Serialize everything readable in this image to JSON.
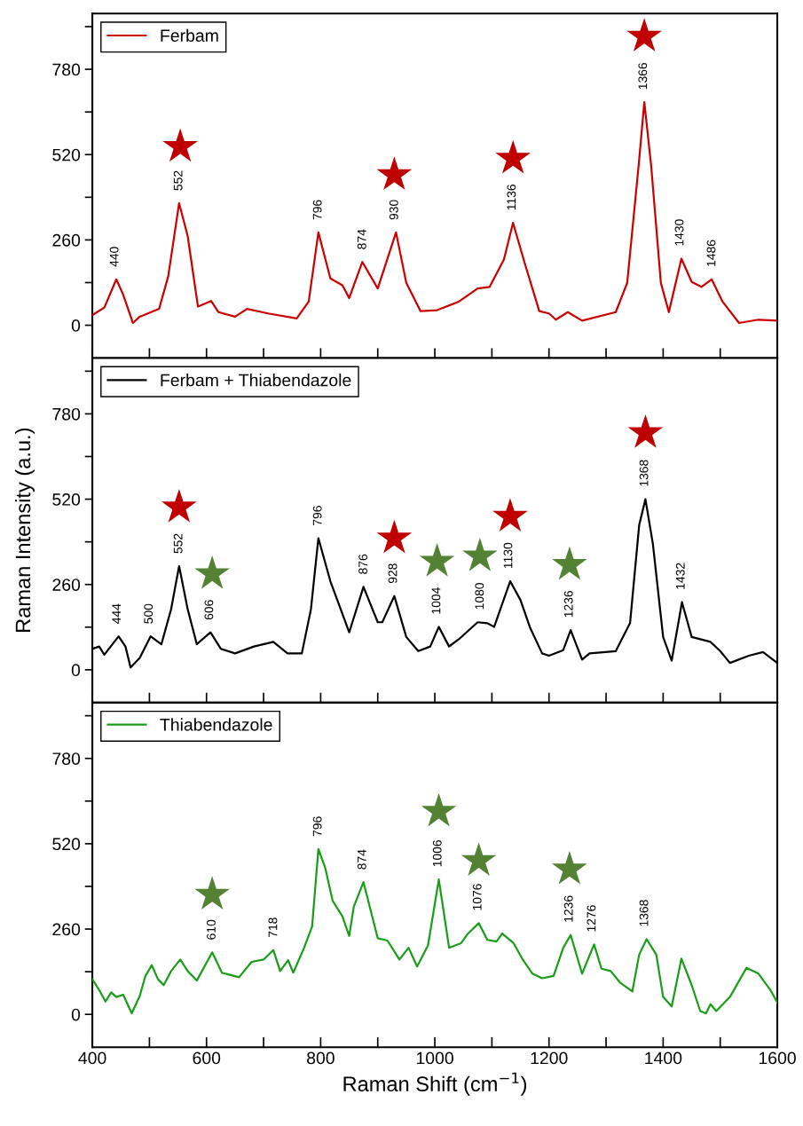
{
  "chart_data": [
    {
      "type": "line",
      "xlim": [
        400,
        1600
      ],
      "ylim": [
        -100,
        950
      ],
      "xticks": [
        400,
        {
          "value": 500,
          "label": null
        },
        600,
        {
          "value": 700,
          "label": null
        },
        800,
        {
          "value": 900,
          "label": null
        },
        1000,
        {
          "value": 1100,
          "label": null
        },
        1200,
        {
          "value": 1300,
          "label": null
        },
        1400,
        {
          "value": 1500,
          "label": null
        },
        1600
      ],
      "yticks": [
        0,
        {
          "value": 130,
          "label": null
        },
        260,
        {
          "value": 390,
          "label": null
        },
        520,
        {
          "value": 650,
          "label": null
        },
        780,
        {
          "value": 910,
          "label": null
        }
      ],
      "tick_labels": "y",
      "legend": "top left",
      "grid": false,
      "series": [
        {
          "name": "Ferbam",
          "color": "#cc0000",
          "x": [
            400,
            421,
            442,
            454,
            471,
            483,
            517,
            533,
            552,
            567,
            585,
            608,
            621,
            650,
            671,
            708,
            758,
            779,
            796,
            817,
            838,
            850,
            873,
            900,
            932,
            950,
            975,
            1004,
            1042,
            1075,
            1096,
            1121,
            1137,
            1158,
            1183,
            1200,
            1212,
            1233,
            1258,
            1317,
            1337,
            1357,
            1367,
            1379,
            1396,
            1410,
            1432,
            1450,
            1467,
            1485,
            1504,
            1533,
            1567,
            1600
          ],
          "values": [
            31,
            54,
            140,
            93,
            7,
            26,
            50,
            150,
            372,
            272,
            57,
            74,
            40,
            26,
            50,
            36,
            21,
            72,
            283,
            143,
            122,
            83,
            193,
            112,
            283,
            129,
            43,
            46,
            72,
            112,
            117,
            200,
            312,
            186,
            43,
            36,
            17,
            40,
            14,
            40,
            129,
            486,
            680,
            486,
            129,
            40,
            203,
            132,
            117,
            140,
            72,
            7,
            17,
            14
          ]
        },
        {
          "color": "#c00000",
          "type": "scatter",
          "marker": "star",
          "x": [
            554,
            929,
            1137,
            1367
          ],
          "values": [
            544,
            458,
            508,
            880
          ]
        }
      ],
      "annotations": [
        {
          "text": "440",
          "x": 440,
          "y": 140
        },
        {
          "text": "552",
          "x": 552,
          "y": 372
        },
        {
          "text": "796",
          "x": 796,
          "y": 283
        },
        {
          "text": "874",
          "x": 874,
          "y": 193
        },
        {
          "text": "930",
          "x": 930,
          "y": 283
        },
        {
          "text": "1136",
          "x": 1136,
          "y": 312
        },
        {
          "text": "1366",
          "x": 1366,
          "y": 680
        },
        {
          "text": "1430",
          "x": 1430,
          "y": 203
        },
        {
          "text": "1486",
          "x": 1486,
          "y": 140
        }
      ]
    },
    {
      "type": "line",
      "xlim": [
        400,
        1600
      ],
      "ylim": [
        -100,
        950
      ],
      "xticks": [
        400,
        {
          "value": 500,
          "label": null
        },
        600,
        {
          "value": 700,
          "label": null
        },
        800,
        {
          "value": 900,
          "label": null
        },
        1000,
        {
          "value": 1100,
          "label": null
        },
        1200,
        {
          "value": 1300,
          "label": null
        },
        1400,
        {
          "value": 1500,
          "label": null
        },
        1600
      ],
      "yticks": [
        0,
        {
          "value": 130,
          "label": null
        },
        260,
        {
          "value": 390,
          "label": null
        },
        520,
        {
          "value": 650,
          "label": null
        },
        780,
        {
          "value": 910,
          "label": null
        }
      ],
      "tick_labels": "y",
      "legend": "top left",
      "grid": false,
      "ylabel": "Raman Intensity (a.u.)",
      "series": [
        {
          "name": "Ferbam + Thiabendazole",
          "color": "#000000",
          "x": [
            400,
            412,
            421,
            446,
            458,
            467,
            483,
            502,
            521,
            538,
            552,
            567,
            583,
            607,
            625,
            650,
            683,
            717,
            742,
            767,
            783,
            796,
            817,
            838,
            850,
            875,
            900,
            908,
            929,
            950,
            971,
            992,
            1007,
            1025,
            1042,
            1075,
            1092,
            1104,
            1132,
            1150,
            1167,
            1188,
            1200,
            1225,
            1238,
            1258,
            1271,
            1317,
            1342,
            1358,
            1369,
            1382,
            1400,
            1415,
            1433,
            1450,
            1483,
            1500,
            1517,
            1550,
            1575,
            1600
          ],
          "values": [
            64,
            71,
            46,
            102,
            71,
            7,
            36,
            102,
            78,
            185,
            316,
            185,
            78,
            114,
            64,
            50,
            71,
            85,
            50,
            50,
            185,
            401,
            270,
            171,
            114,
            253,
            145,
            145,
            225,
            100,
            57,
            71,
            131,
            71,
            93,
            145,
            142,
            131,
            270,
            213,
            128,
            50,
            43,
            60,
            121,
            31,
            50,
            57,
            142,
            441,
            520,
            384,
            100,
            28,
            206,
            100,
            85,
            57,
            21,
            43,
            54,
            21
          ]
        },
        {
          "color": "#c00000",
          "type": "scatter",
          "marker": "star",
          "x": [
            552,
            929,
            1132,
            1369
          ],
          "values": [
            495,
            401,
            467,
            722
          ]
        },
        {
          "color": "#548235",
          "type": "scatter",
          "marker": "star",
          "x": [
            610,
            1004,
            1079,
            1236
          ],
          "values": [
            292,
            330,
            346,
            320
          ]
        }
      ],
      "annotations": [
        {
          "text": "444",
          "x": 444,
          "y": 102
        },
        {
          "text": "500",
          "x": 500,
          "y": 102
        },
        {
          "text": "552",
          "x": 552,
          "y": 316
        },
        {
          "text": "606",
          "x": 606,
          "y": 114
        },
        {
          "text": "796",
          "x": 796,
          "y": 401
        },
        {
          "text": "876",
          "x": 876,
          "y": 253
        },
        {
          "text": "928",
          "x": 928,
          "y": 225
        },
        {
          "text": "1004",
          "x": 1004,
          "y": 131
        },
        {
          "text": "1080",
          "x": 1080,
          "y": 145
        },
        {
          "text": "1130",
          "x": 1130,
          "y": 270
        },
        {
          "text": "1236",
          "x": 1236,
          "y": 121
        },
        {
          "text": "1368",
          "x": 1368,
          "y": 520
        },
        {
          "text": "1432",
          "x": 1432,
          "y": 206
        }
      ]
    },
    {
      "type": "line",
      "xlim": [
        400,
        1600
      ],
      "ylim": [
        -100,
        950
      ],
      "xticks": [
        400,
        {
          "value": 500,
          "label": null
        },
        600,
        {
          "value": 700,
          "label": null
        },
        800,
        {
          "value": 900,
          "label": null
        },
        1000,
        {
          "value": 1100,
          "label": null
        },
        1200,
        {
          "value": 1300,
          "label": null
        },
        1400,
        {
          "value": 1500,
          "label": null
        },
        1600
      ],
      "yticks": [
        0,
        {
          "value": 130,
          "label": null
        },
        260,
        {
          "value": 390,
          "label": null
        },
        520,
        {
          "value": 650,
          "label": null
        },
        780,
        {
          "value": 910,
          "label": null
        }
      ],
      "legend": "top left",
      "grid": false,
      "xlabel": "Raman Shift (cm$^{−1}$)",
      "series": [
        {
          "name": "Thiabendazole",
          "color": "#1a9e1a",
          "x": [
            400,
            412,
            423,
            433,
            442,
            454,
            469,
            483,
            493,
            504,
            515,
            525,
            538,
            554,
            567,
            583,
            610,
            627,
            657,
            679,
            700,
            717,
            729,
            743,
            752,
            771,
            785,
            796,
            808,
            821,
            838,
            850,
            858,
            875,
            900,
            917,
            938,
            954,
            969,
            988,
            1007,
            1025,
            1046,
            1058,
            1077,
            1092,
            1108,
            1118,
            1138,
            1154,
            1171,
            1188,
            1208,
            1225,
            1238,
            1258,
            1279,
            1292,
            1308,
            1325,
            1346,
            1358,
            1371,
            1388,
            1400,
            1415,
            1432,
            1450,
            1465,
            1475,
            1483,
            1493,
            1517,
            1546,
            1567,
            1588,
            1600
          ],
          "values": [
            107,
            74,
            39,
            67,
            53,
            60,
            3,
            56,
            117,
            150,
            107,
            89,
            132,
            167,
            132,
            103,
            189,
            127,
            113,
            160,
            167,
            196,
            132,
            165,
            127,
            203,
            268,
            504,
            446,
            346,
            299,
            239,
            328,
            403,
            232,
            225,
            167,
            203,
            146,
            210,
            411,
            203,
            217,
            246,
            278,
            227,
            222,
            246,
            217,
            167,
            124,
            110,
            117,
            203,
            242,
            124,
            213,
            139,
            132,
            96,
            70,
            182,
            229,
            182,
            53,
            24,
            170,
            89,
            10,
            3,
            31,
            10,
            53,
            142,
            124,
            74,
            36
          ]
        },
        {
          "color": "#548235",
          "type": "scatter",
          "marker": "star",
          "x": [
            610,
            1007,
            1077,
            1236
          ],
          "values": [
            365,
            618,
            468,
            442
          ]
        }
      ],
      "annotations": [
        {
          "text": "610",
          "x": 610,
          "y": 189
        },
        {
          "text": "718",
          "x": 718,
          "y": 196
        },
        {
          "text": "796",
          "x": 796,
          "y": 504
        },
        {
          "text": "874",
          "x": 874,
          "y": 403
        },
        {
          "text": "1006",
          "x": 1006,
          "y": 411
        },
        {
          "text": "1076",
          "x": 1076,
          "y": 278
        },
        {
          "text": "1236",
          "x": 1236,
          "y": 242
        },
        {
          "text": "1276",
          "x": 1276,
          "y": 213
        },
        {
          "text": "1368",
          "x": 1368,
          "y": 229
        }
      ]
    }
  ]
}
